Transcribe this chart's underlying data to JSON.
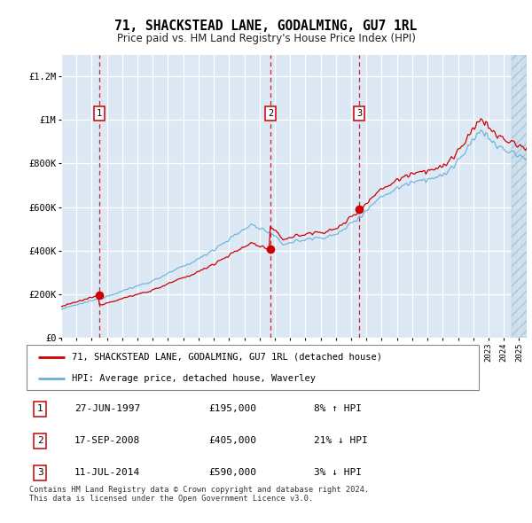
{
  "title": "71, SHACKSTEAD LANE, GODALMING, GU7 1RL",
  "subtitle": "Price paid vs. HM Land Registry's House Price Index (HPI)",
  "bg_color": "#dce9f5",
  "sale_year_floats": [
    1997.49,
    2008.71,
    2014.53
  ],
  "sale_prices": [
    195000,
    405000,
    590000
  ],
  "sale_labels": [
    "1",
    "2",
    "3"
  ],
  "legend_line1": "71, SHACKSTEAD LANE, GODALMING, GU7 1RL (detached house)",
  "legend_line2": "HPI: Average price, detached house, Waverley",
  "table_rows": [
    [
      "1",
      "27-JUN-1997",
      "£195,000",
      "8% ↑ HPI"
    ],
    [
      "2",
      "17-SEP-2008",
      "£405,000",
      "21% ↓ HPI"
    ],
    [
      "3",
      "11-JUL-2014",
      "£590,000",
      "3% ↓ HPI"
    ]
  ],
  "footer": "Contains HM Land Registry data © Crown copyright and database right 2024.\nThis data is licensed under the Open Government Licence v3.0.",
  "xmin": 1995.0,
  "xmax": 2025.5,
  "ymin": 0,
  "ymax": 1300000,
  "yticks": [
    0,
    200000,
    400000,
    600000,
    800000,
    1000000,
    1200000
  ],
  "ytick_labels": [
    "£0",
    "£200K",
    "£400K",
    "£600K",
    "£800K",
    "£1M",
    "£1.2M"
  ],
  "xticks": [
    1995,
    1996,
    1997,
    1998,
    1999,
    2000,
    2001,
    2002,
    2003,
    2004,
    2005,
    2006,
    2007,
    2008,
    2009,
    2010,
    2011,
    2012,
    2013,
    2014,
    2015,
    2016,
    2017,
    2018,
    2019,
    2020,
    2021,
    2022,
    2023,
    2024,
    2025
  ],
  "hpi_color": "#6baed6",
  "sale_line_color": "#cc0000",
  "vline_color": "#cc0000",
  "hatch_region_start": 2024.5
}
